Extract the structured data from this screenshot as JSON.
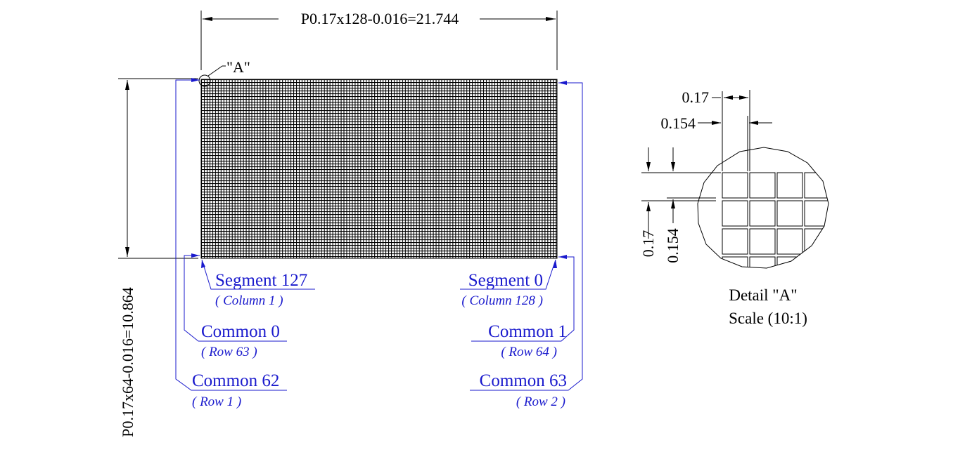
{
  "dimensions": {
    "width_label": "P0.17x128-0.016=21.744",
    "height_label": "P0.17x64-0.016=10.864"
  },
  "detail_marker": "\"A\"",
  "callouts": {
    "segment_127": {
      "label": "Segment 127",
      "sub": "( Column 1 )"
    },
    "segment_0": {
      "label": "Segment 0",
      "sub": "( Column 128 )"
    },
    "common_0": {
      "label": "Common 0",
      "sub": "( Row 63 )"
    },
    "common_1": {
      "label": "Common 1",
      "sub": "( Row 64 )"
    },
    "common_62": {
      "label": "Common 62",
      "sub": "( Row 1 )"
    },
    "common_63": {
      "label": "Common 63",
      "sub": "( Row 2 )"
    }
  },
  "detail": {
    "pitch_label": "0.17",
    "pixel_label": "0.154",
    "v_pitch_label": "0.17",
    "v_pixel_label": "0.154",
    "title": "Detail \"A\"",
    "scale": "Scale (10:1)"
  },
  "colors": {
    "line": "#000000",
    "callout": "#1a1acd"
  },
  "grid": {
    "columns": 128,
    "rows": 64
  }
}
